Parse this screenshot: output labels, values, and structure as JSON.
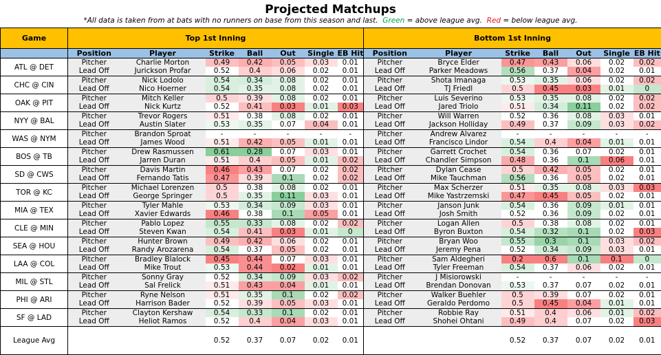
{
  "title": "Projected Matchups",
  "subtitle": {
    "prefix": "*All data is taken from at bats with no runners on base from this season and last.",
    "green_word": "Green",
    "green_text": "= above league avg.",
    "red_word": "Red",
    "red_text": "= below league avg."
  },
  "headers": {
    "game": "Game",
    "top": "Top 1st Inning",
    "bottom": "Bottom 1st Inning",
    "columns": [
      "Position",
      "Player",
      "Strike",
      "Ball",
      "Out",
      "Single",
      "EB Hit"
    ]
  },
  "colors": {
    "header_gold": "#ffc000",
    "header_blue": "#9bc2e6",
    "red_strong": "#f8696b",
    "green_strong": "#63be7b"
  },
  "games": [
    {
      "game": "ATL @ DET",
      "top": [
        [
          "Pitcher",
          "Charlie Morton",
          "0.49",
          "0.42",
          "0.05",
          "0.03",
          "0.01"
        ],
        [
          "Lead Off",
          "Jurickson Profar",
          "0.52",
          "0.4",
          "0.06",
          "0.02",
          "0.01"
        ]
      ],
      "bottom": [
        [
          "Pitcher",
          "Bryce Elder",
          "0.47",
          "0.43",
          "0.06",
          "0.02",
          "0.02"
        ],
        [
          "Lead Off",
          "Parker Meadows",
          "0.56",
          "0.37",
          "0.04",
          "0.02",
          "0.01"
        ]
      ]
    },
    {
      "game": "CHC @ CIN",
      "top": [
        [
          "Pitcher",
          "Nick Lodolo",
          "0.54",
          "0.34",
          "0.08",
          "0.02",
          "0.01"
        ],
        [
          "Lead Off",
          "Nico Hoerner",
          "0.54",
          "0.35",
          "0.08",
          "0.02",
          "0.01"
        ]
      ],
      "bottom": [
        [
          "Pitcher",
          "Shota Imanaga",
          "0.53",
          "0.35",
          "0.06",
          "0.02",
          "0.02"
        ],
        [
          "Lead Off",
          "TJ Friedl",
          "0.5",
          "0.45",
          "0.03",
          "0.01",
          "0"
        ]
      ]
    },
    {
      "game": "OAK @ PIT",
      "top": [
        [
          "Pitcher",
          "Mitch Keller",
          "0.5",
          "0.39",
          "0.08",
          "0.02",
          "0.01"
        ],
        [
          "Lead Off",
          "Nick Kurtz",
          "0.52",
          "0.41",
          "0.03",
          "0.01",
          "0.03"
        ]
      ],
      "bottom": [
        [
          "Pitcher",
          "Luis Severino",
          "0.53",
          "0.35",
          "0.08",
          "0.02",
          "0.02"
        ],
        [
          "Lead Off",
          "Jared Triolo",
          "0.51",
          "0.34",
          "0.11",
          "0.02",
          "0.02"
        ]
      ]
    },
    {
      "game": "NYY @ BAL",
      "top": [
        [
          "Pitcher",
          "Trevor Rogers",
          "0.51",
          "0.38",
          "0.08",
          "0.02",
          "0.01"
        ],
        [
          "Lead Off",
          "Austin Slater",
          "0.53",
          "0.35",
          "0.07",
          "0.04",
          "0.01"
        ]
      ],
      "bottom": [
        [
          "Pitcher",
          "Will Warren",
          "0.52",
          "0.36",
          "0.08",
          "0.03",
          "0.01"
        ],
        [
          "Lead Off",
          "Jackson Holliday",
          "0.49",
          "0.37",
          "0.09",
          "0.03",
          "0.02"
        ]
      ]
    },
    {
      "game": "WAS @ NYM",
      "top": [
        [
          "Pitcher",
          "Brandon Sproat",
          "-",
          "-",
          "-",
          "-",
          "-"
        ],
        [
          "Lead Off",
          "James Wood",
          "0.51",
          "0.42",
          "0.05",
          "0.01",
          "0.01"
        ]
      ],
      "bottom": [
        [
          "Pitcher",
          "Andrew Alvarez",
          "-",
          "-",
          "-",
          "-",
          "-"
        ],
        [
          "Lead Off",
          "Francisco Lindor",
          "0.54",
          "0.4",
          "0.04",
          "0.01",
          "0.01"
        ]
      ]
    },
    {
      "game": "BOS @ TB",
      "top": [
        [
          "Pitcher",
          "Drew Rasmussen",
          "0.61",
          "0.28",
          "0.07",
          "0.03",
          "0.01"
        ],
        [
          "Lead Off",
          "Jarren Duran",
          "0.51",
          "0.4",
          "0.05",
          "0.01",
          "0.02"
        ]
      ],
      "bottom": [
        [
          "Pitcher",
          "Garrett Crochet",
          "0.54",
          "0.36",
          "0.07",
          "0.02",
          "0.01"
        ],
        [
          "Lead Off",
          "Chandler Simpson",
          "0.48",
          "0.36",
          "0.1",
          "0.06",
          "0.01"
        ]
      ]
    },
    {
      "game": "SD @ CWS",
      "top": [
        [
          "Pitcher",
          "Davis Martin",
          "0.46",
          "0.43",
          "0.07",
          "0.02",
          "0.02"
        ],
        [
          "Lead Off",
          "Fernando Tatis",
          "0.47",
          "0.39",
          "0.1",
          "0.02",
          "0.02"
        ]
      ],
      "bottom": [
        [
          "Pitcher",
          "Dylan Cease",
          "0.5",
          "0.42",
          "0.05",
          "0.02",
          "0.01"
        ],
        [
          "Lead Off",
          "Mike Tauchman",
          "0.56",
          "0.36",
          "0.05",
          "0.02",
          "0.01"
        ]
      ]
    },
    {
      "game": "TOR @ KC",
      "top": [
        [
          "Pitcher",
          "Michael Lorenzen",
          "0.5",
          "0.38",
          "0.08",
          "0.02",
          "0.01"
        ],
        [
          "Lead Off",
          "George Springer",
          "0.5",
          "0.35",
          "0.11",
          "0.03",
          "0.01"
        ]
      ],
      "bottom": [
        [
          "Pitcher",
          "Max Scherzer",
          "0.51",
          "0.35",
          "0.08",
          "0.03",
          "0.03"
        ],
        [
          "Lead Off",
          "Mike Yastrzemski",
          "0.47",
          "0.45",
          "0.05",
          "0.02",
          "0.01"
        ]
      ]
    },
    {
      "game": "MIA @ TEX",
      "top": [
        [
          "Pitcher",
          "Tyler Mahle",
          "0.53",
          "0.34",
          "0.09",
          "0.03",
          "0.01"
        ],
        [
          "Lead Off",
          "Xavier Edwards",
          "0.46",
          "0.38",
          "0.1",
          "0.05",
          "0.01"
        ]
      ],
      "bottom": [
        [
          "Pitcher",
          "Janson Junk",
          "0.54",
          "0.36",
          "0.09",
          "0.01",
          "0.01"
        ],
        [
          "Lead Off",
          "Josh Smith",
          "0.52",
          "0.36",
          "0.09",
          "0.02",
          "0.01"
        ]
      ]
    },
    {
      "game": "CLE @ MIN",
      "top": [
        [
          "Pitcher",
          "Pablo Lopez",
          "0.55",
          "0.33",
          "0.08",
          "0.02",
          "0.02"
        ],
        [
          "Lead Off",
          "Steven Kwan",
          "0.54",
          "0.41",
          "0.03",
          "0.01",
          "0"
        ]
      ],
      "bottom": [
        [
          "Pitcher",
          "Logan Allen",
          "0.5",
          "0.38",
          "0.08",
          "0.02",
          "0.01"
        ],
        [
          "Lead Off",
          "Byron Buxton",
          "0.54",
          "0.32",
          "0.1",
          "0.02",
          "0.03"
        ]
      ]
    },
    {
      "game": "SEA @ HOU",
      "top": [
        [
          "Pitcher",
          "Hunter Brown",
          "0.49",
          "0.42",
          "0.06",
          "0.02",
          "0.01"
        ],
        [
          "Lead Off",
          "Randy Arozarena",
          "0.54",
          "0.37",
          "0.05",
          "0.02",
          "0.01"
        ]
      ],
      "bottom": [
        [
          "Pitcher",
          "Bryan Woo",
          "0.55",
          "0.3",
          "0.1",
          "0.03",
          "0.02"
        ],
        [
          "Lead Off",
          "Jeremy Pena",
          "0.52",
          "0.34",
          "0.09",
          "0.03",
          "0.01"
        ]
      ]
    },
    {
      "game": "LAA @ COL",
      "top": [
        [
          "Pitcher",
          "Bradley Blalock",
          "0.45",
          "0.44",
          "0.07",
          "0.03",
          "0.01"
        ],
        [
          "Lead Off",
          "Mike Trout",
          "0.53",
          "0.44",
          "0.02",
          "0.01",
          "0.01"
        ]
      ],
      "bottom": [
        [
          "Pitcher",
          "Sam Aldegheri",
          "0.2",
          "0.6",
          "0.1",
          "0.1",
          "0"
        ],
        [
          "Lead Off",
          "Tyler Freeman",
          "0.54",
          "0.37",
          "0.06",
          "0.02",
          "0.01"
        ]
      ]
    },
    {
      "game": "MIL @ STL",
      "top": [
        [
          "Pitcher",
          "Sonny Gray",
          "0.52",
          "0.34",
          "0.09",
          "0.03",
          "0.02"
        ],
        [
          "Lead Off",
          "Sal Frelick",
          "0.51",
          "0.43",
          "0.04",
          "0.01",
          "0.01"
        ]
      ],
      "bottom": [
        [
          "Pitcher",
          "J Misiorowski",
          "-",
          "-",
          "-",
          "-",
          "-"
        ],
        [
          "Lead Off",
          "Brendan Donovan",
          "0.53",
          "0.37",
          "0.07",
          "0.02",
          "0.01"
        ]
      ]
    },
    {
      "game": "PHI @ ARI",
      "top": [
        [
          "Pitcher",
          "Ryne Nelson",
          "0.51",
          "0.35",
          "0.1",
          "0.02",
          "0.02"
        ],
        [
          "Lead Off",
          "Harrison Bader",
          "0.52",
          "0.39",
          "0.05",
          "0.03",
          "0.01"
        ]
      ],
      "bottom": [
        [
          "Pitcher",
          "Walker Buehler",
          "0.5",
          "0.39",
          "0.07",
          "0.02",
          "0.01"
        ],
        [
          "Lead Off",
          "Geraldo Perdomo",
          "0.5",
          "0.45",
          "0.04",
          "0.01",
          "0.01"
        ]
      ]
    },
    {
      "game": "SF @ LAD",
      "top": [
        [
          "Pitcher",
          "Clayton Kershaw",
          "0.54",
          "0.33",
          "0.1",
          "0.02",
          "0.01"
        ],
        [
          "Lead Off",
          "Heliot Ramos",
          "0.52",
          "0.4",
          "0.04",
          "0.03",
          "0.01"
        ]
      ],
      "bottom": [
        [
          "Pitcher",
          "Robbie Ray",
          "0.51",
          "0.4",
          "0.06",
          "0.01",
          "0.02"
        ],
        [
          "Lead Off",
          "Shohei Ohtani",
          "0.49",
          "0.4",
          "0.07",
          "0.02",
          "0.03"
        ]
      ]
    }
  ],
  "league_avg": {
    "label": "League Avg",
    "values": [
      "0.52",
      "0.37",
      "0.07",
      "0.02",
      "0.01"
    ]
  }
}
